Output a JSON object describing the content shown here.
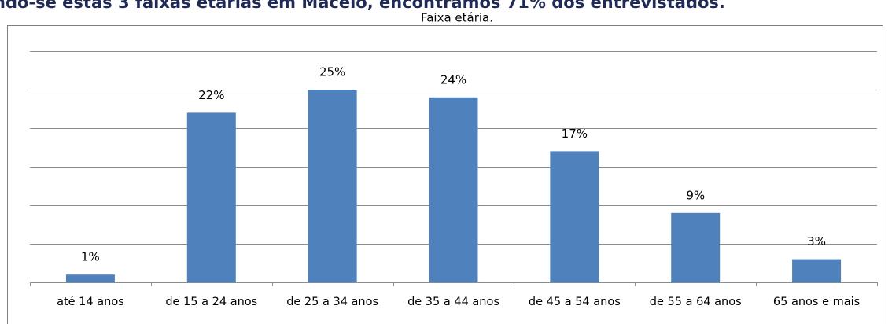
{
  "text": "ndo-se estas 3 faixas etárias em Maceió, encontramos 71% dos entrevistados.",
  "chart_data": {
    "type": "bar",
    "title": "Faixa etária.",
    "categories": [
      "até 14 anos",
      "de 15 a 24 anos",
      "de 25 a 34 anos",
      "de 35 a 44 anos",
      "de 45 a 54 anos",
      "de 55 a 64 anos",
      "65 anos e mais"
    ],
    "values": [
      1,
      22,
      25,
      24,
      17,
      9,
      3
    ],
    "value_labels": [
      "1%",
      "22%",
      "25%",
      "24%",
      "17%",
      "9%",
      "3%"
    ],
    "color": "#4f81bd",
    "ylim": [
      0,
      30
    ],
    "yticks": [
      0,
      5,
      10,
      15,
      20,
      25,
      30
    ],
    "grid": true
  }
}
